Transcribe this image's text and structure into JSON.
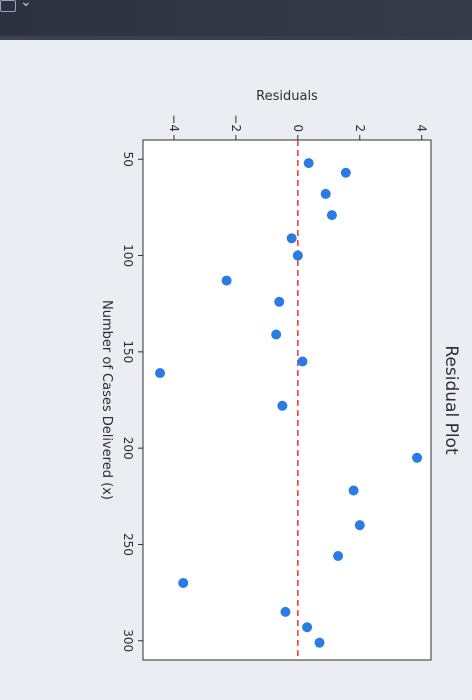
{
  "chart_data": {
    "type": "scatter",
    "title": "Residual Plot",
    "xlabel": "Number of Cases Delivered (x)",
    "ylabel": "Residuals",
    "xlim": [
      40,
      310
    ],
    "ylim": [
      -5,
      4.3
    ],
    "xticks": [
      "50",
      "100",
      "150",
      "200",
      "250",
      "300"
    ],
    "yticks": [
      "−4",
      "−2",
      "0",
      "2",
      "4"
    ],
    "point_color": "#2b7be4",
    "zero_line_color": "#ff3b3b",
    "points": [
      {
        "x": 52,
        "y": 0.35
      },
      {
        "x": 57,
        "y": 1.55
      },
      {
        "x": 68,
        "y": 0.9
      },
      {
        "x": 79,
        "y": 1.1
      },
      {
        "x": 91,
        "y": -0.2
      },
      {
        "x": 100,
        "y": 0.0
      },
      {
        "x": 113,
        "y": -2.3
      },
      {
        "x": 124,
        "y": -0.6
      },
      {
        "x": 141,
        "y": -0.7
      },
      {
        "x": 155,
        "y": 0.15
      },
      {
        "x": 161,
        "y": -4.45
      },
      {
        "x": 178,
        "y": -0.5
      },
      {
        "x": 205,
        "y": 3.85
      },
      {
        "x": 222,
        "y": 1.8
      },
      {
        "x": 240,
        "y": 2.0
      },
      {
        "x": 256,
        "y": 1.3
      },
      {
        "x": 270,
        "y": -3.7
      },
      {
        "x": 285,
        "y": -0.4
      },
      {
        "x": 293,
        "y": 0.3
      },
      {
        "x": 301,
        "y": 0.7
      }
    ]
  }
}
